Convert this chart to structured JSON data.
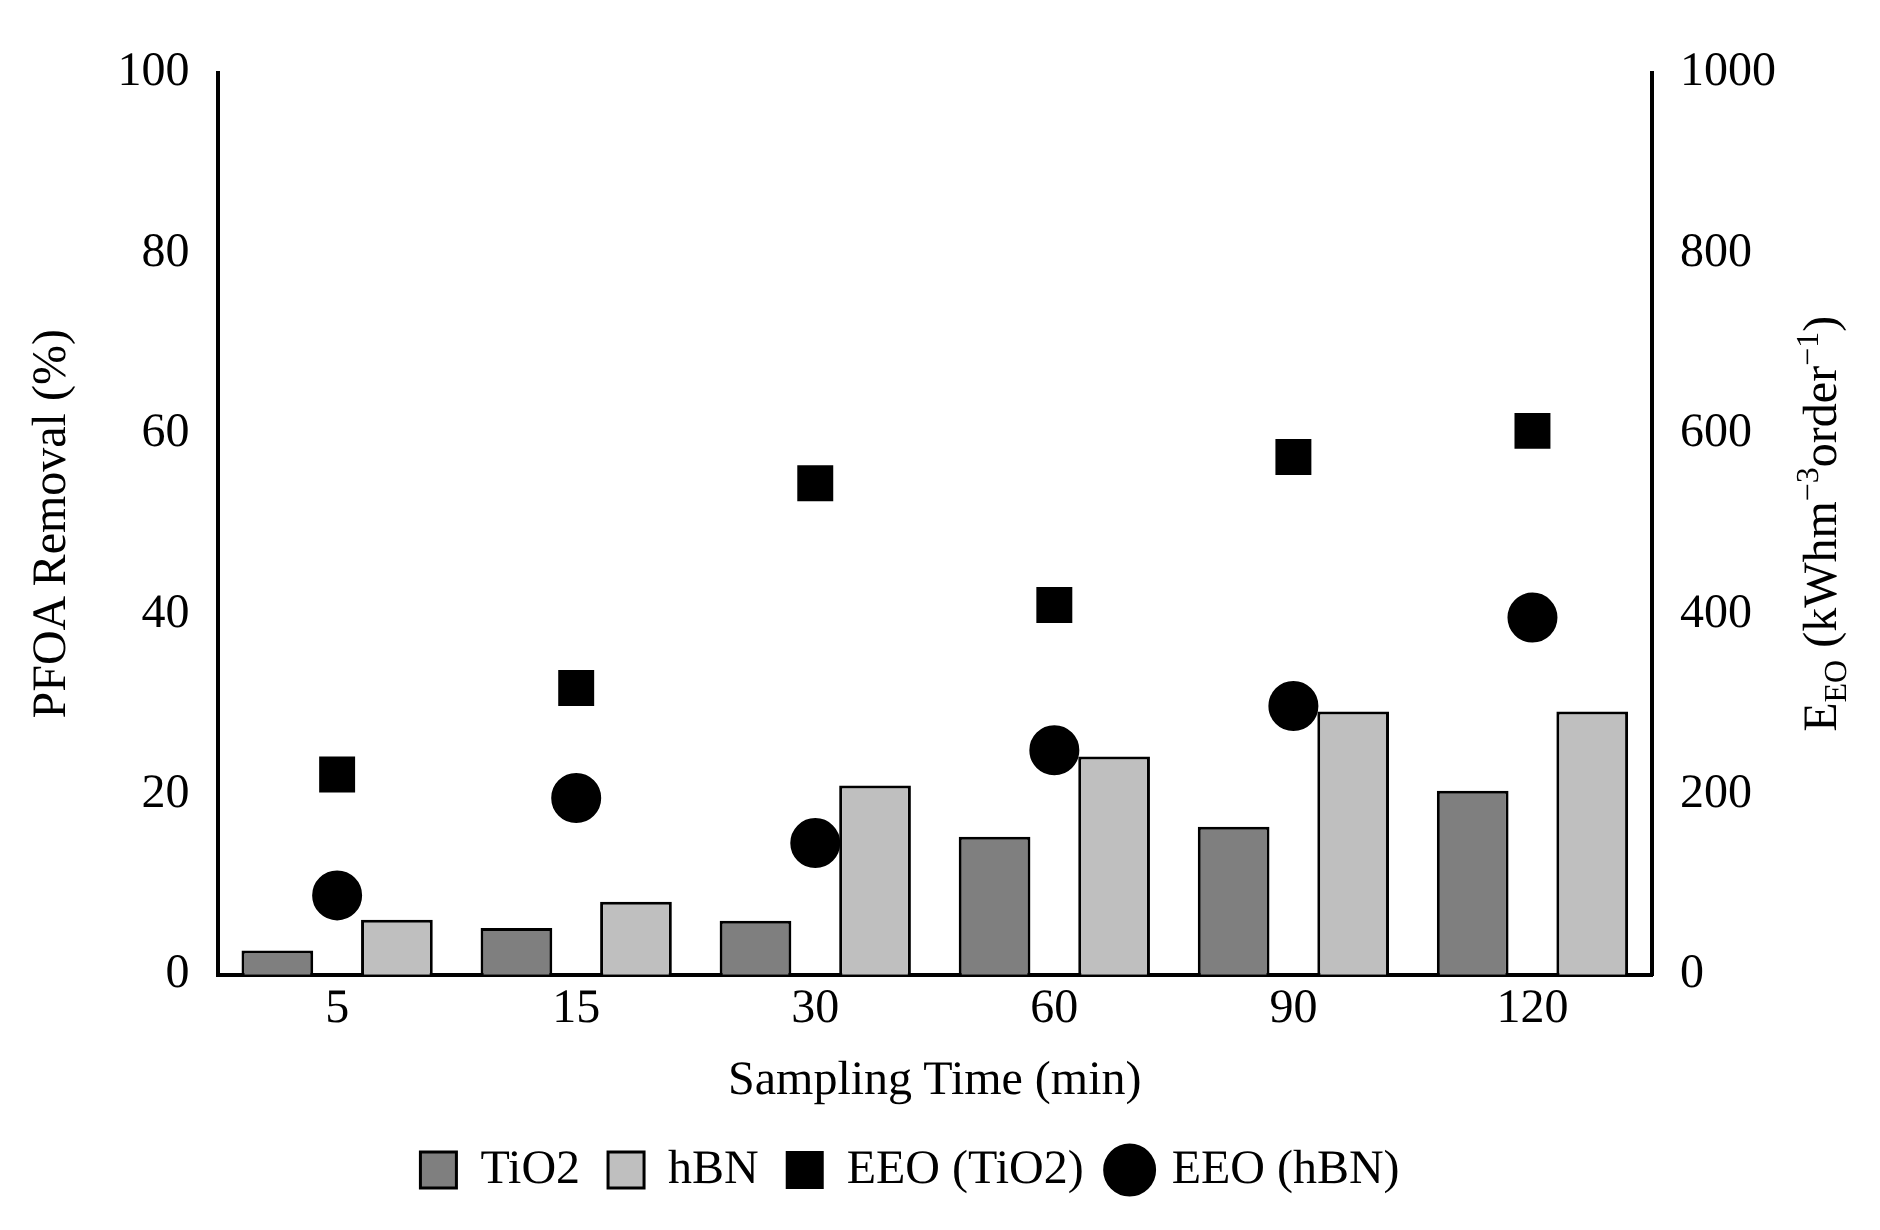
{
  "chart_data": {
    "type": "bar",
    "xlabel": "Sampling Time (min)",
    "ylabel": "PFOA Removal (%)",
    "y2label": "E$_{EO}$ (kWhm$^{−3}$order$^{−1}$)",
    "categories": [
      "5",
      "15",
      "30",
      "60",
      "90",
      "120"
    ],
    "series": [
      {
        "name": "TiO2",
        "color": "#7f7f7f",
        "values": [
          2.7,
          5.2,
          6,
          15.3,
          16.4,
          20.4
        ]
      },
      {
        "name": "hBN",
        "color": "#bfbfbf",
        "values": [
          6.1,
          8.1,
          21,
          24.2,
          29.2,
          29.2
        ]
      },
      {
        "name": "EEO (TiO2)",
        "type": "scatter",
        "marker": "square",
        "axis": "y2",
        "color": "#000000",
        "x": [
          "5",
          "15",
          "30",
          "60",
          "90",
          "120"
        ],
        "values": [
          222,
          318,
          545,
          410,
          574,
          603
        ]
      },
      {
        "name": "EEO (hBN)",
        "type": "scatter",
        "marker": "circle",
        "axis": "y2",
        "color": "#000000",
        "x": [
          "5",
          "15",
          "30",
          "60",
          "90",
          "120"
        ],
        "values": [
          88,
          196,
          146,
          249,
          298,
          396
        ]
      }
    ],
    "ylim": [
      0,
      100
    ],
    "yticks": [
      0,
      20,
      40,
      60,
      80,
      100
    ],
    "y2lim": [
      0,
      1000
    ],
    "y2ticks": [
      0,
      200,
      400,
      600,
      800,
      1000
    ],
    "grid": false,
    "legend": "bottom"
  }
}
